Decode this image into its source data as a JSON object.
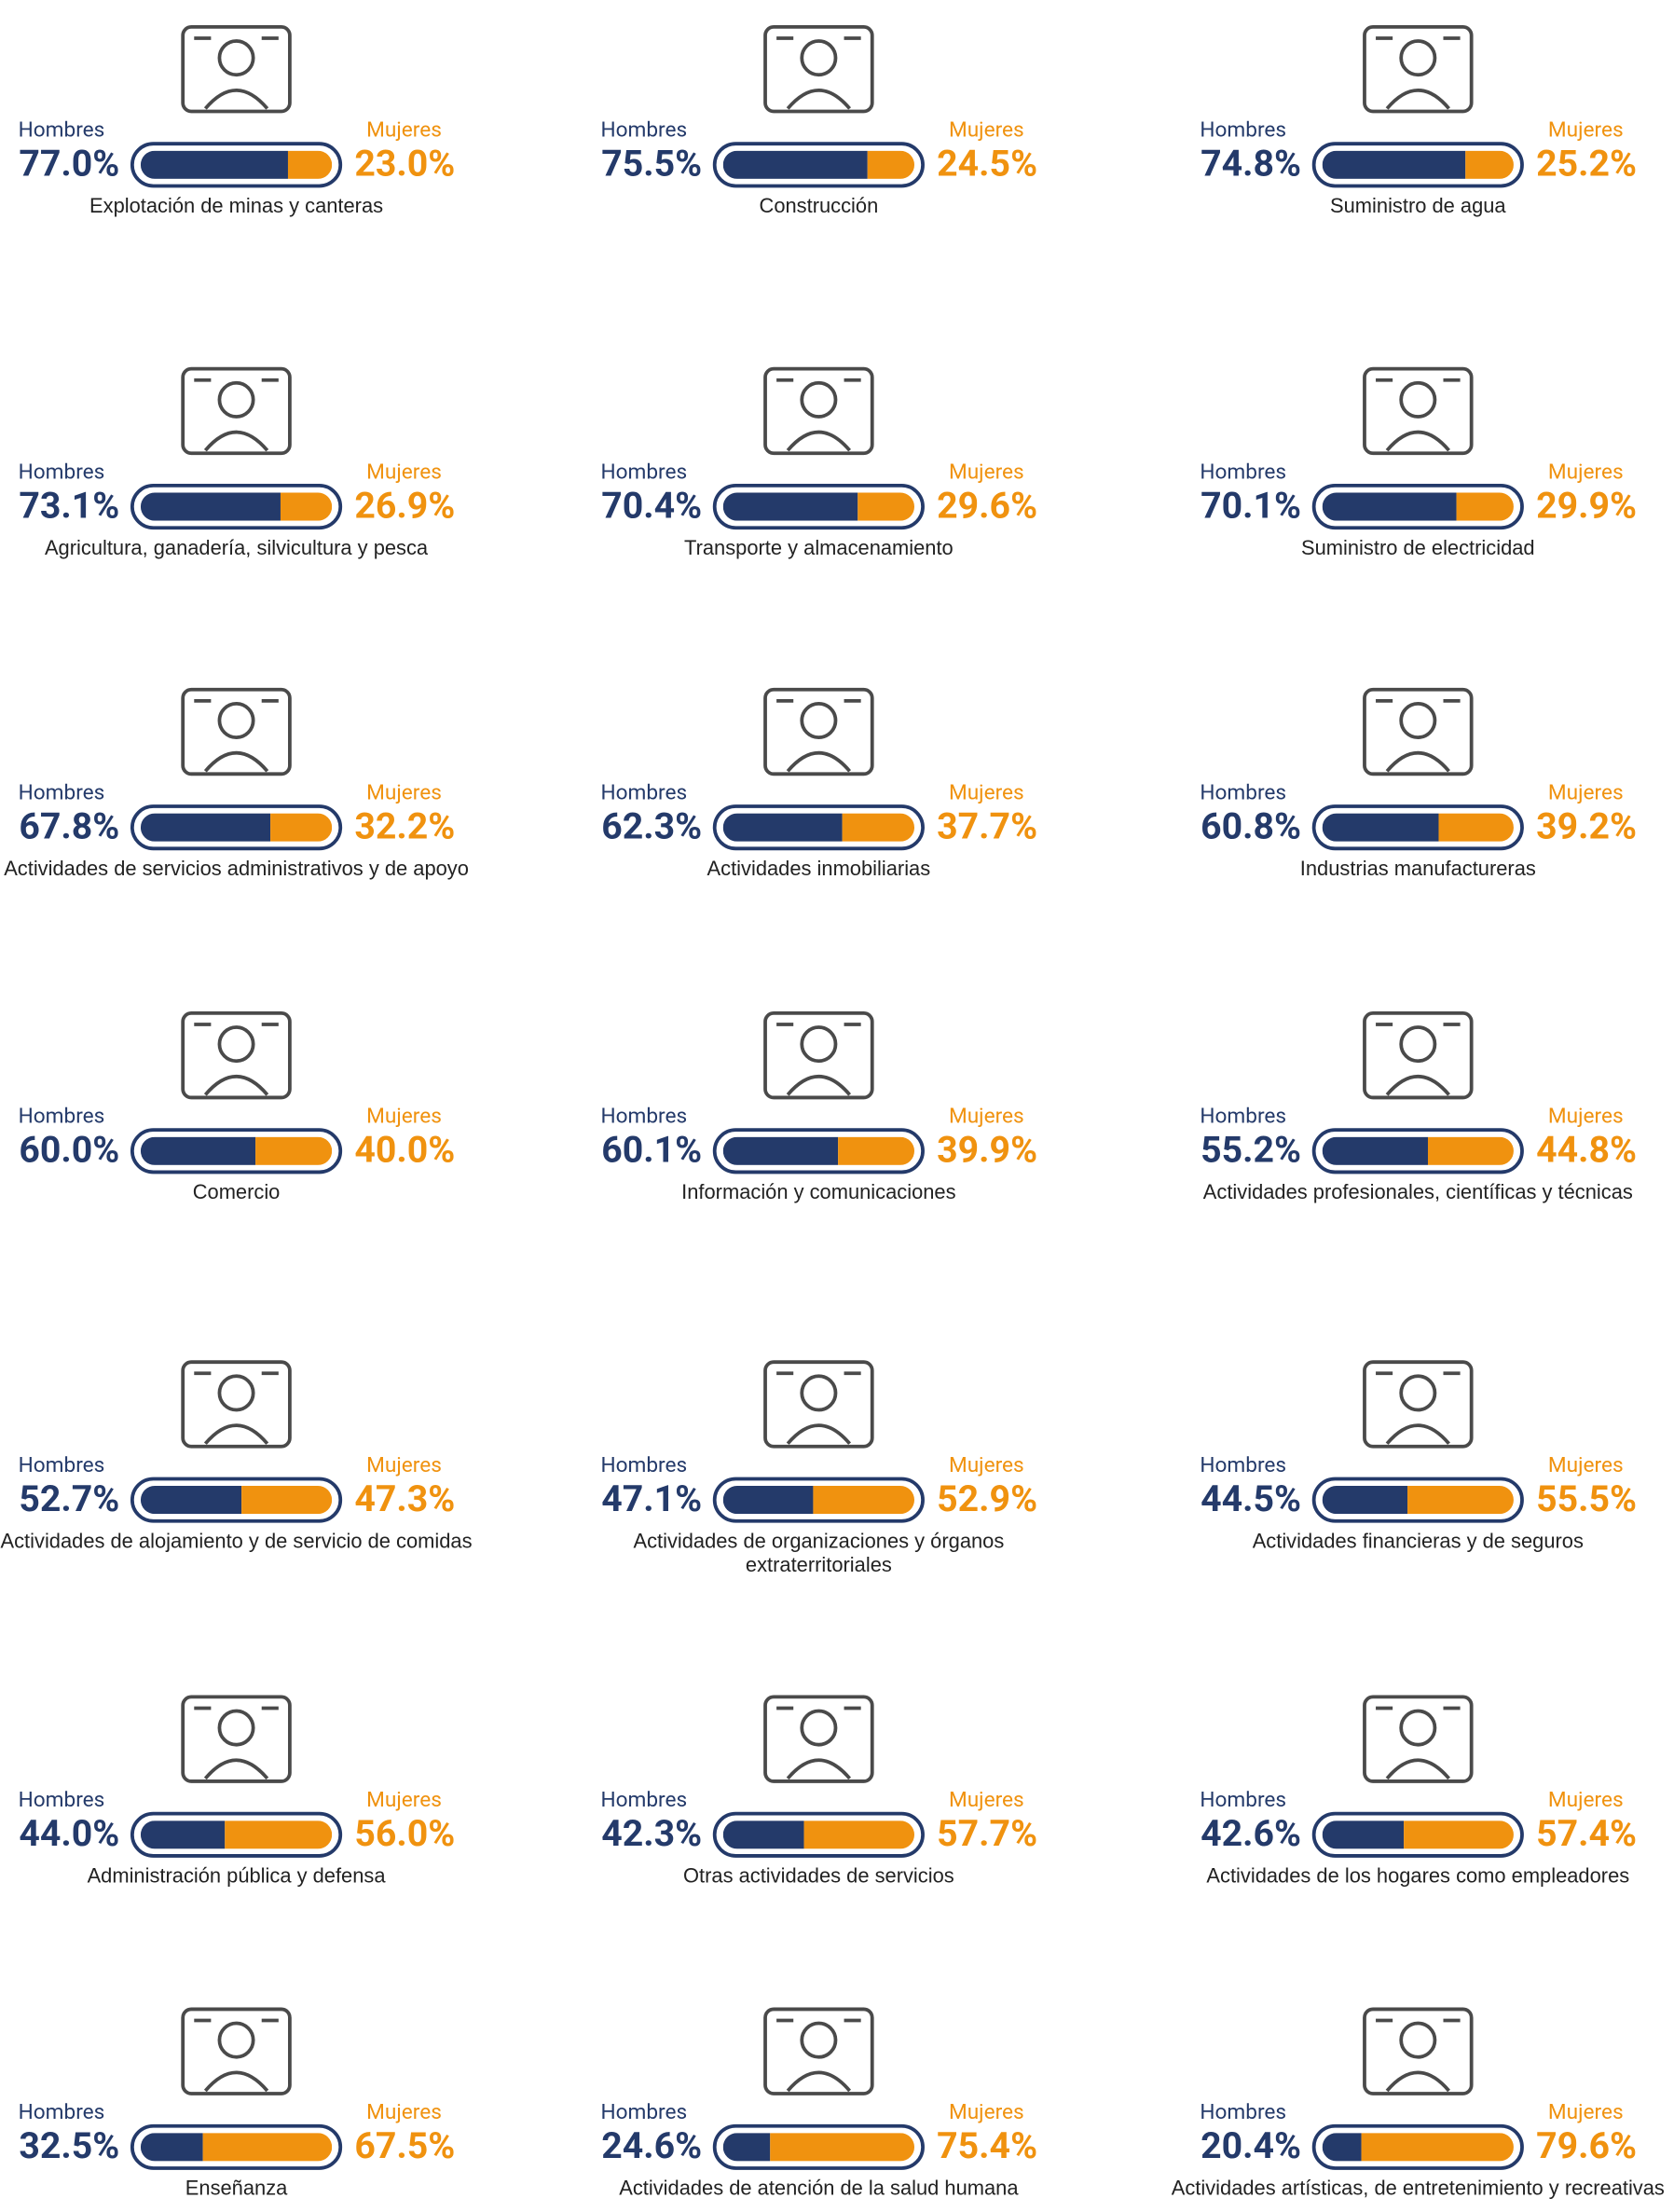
{
  "chart_data": [
    {
      "type": "stacked-hbar",
      "title": "Explotación de minas y canteras",
      "xlim": [
        0,
        100
      ],
      "series": [
        {
          "name": "Hombres",
          "color": "#243a6a",
          "values": [
            77.0
          ],
          "value_labels": [
            "77.0%"
          ]
        },
        {
          "name": "Mujeres",
          "color": "#f0920f",
          "values": [
            23.0
          ],
          "value_labels": [
            "23.0%"
          ]
        }
      ]
    },
    {
      "type": "stacked-hbar",
      "title": "Construcción",
      "xlim": [
        0,
        100
      ],
      "series": [
        {
          "name": "Hombres",
          "color": "#243a6a",
          "values": [
            75.5
          ],
          "value_labels": [
            "75.5%"
          ]
        },
        {
          "name": "Mujeres",
          "color": "#f0920f",
          "values": [
            24.5
          ],
          "value_labels": [
            "24.5%"
          ]
        }
      ]
    },
    {
      "type": "stacked-hbar",
      "title": "Suministro de agua",
      "xlim": [
        0,
        100
      ],
      "series": [
        {
          "name": "Hombres",
          "color": "#243a6a",
          "values": [
            74.8
          ],
          "value_labels": [
            "74.8%"
          ]
        },
        {
          "name": "Mujeres",
          "color": "#f0920f",
          "values": [
            25.2
          ],
          "value_labels": [
            "25.2%"
          ]
        }
      ]
    },
    {
      "type": "stacked-hbar",
      "title": "Agricultura, ganadería, silvicultura y pesca",
      "xlim": [
        0,
        100
      ],
      "series": [
        {
          "name": "Hombres",
          "color": "#243a6a",
          "values": [
            73.1
          ],
          "value_labels": [
            "73.1%"
          ]
        },
        {
          "name": "Mujeres",
          "color": "#f0920f",
          "values": [
            26.9
          ],
          "value_labels": [
            "26.9%"
          ]
        }
      ]
    },
    {
      "type": "stacked-hbar",
      "title": "Transporte y almacenamiento",
      "xlim": [
        0,
        100
      ],
      "series": [
        {
          "name": "Hombres",
          "color": "#243a6a",
          "values": [
            70.4
          ],
          "value_labels": [
            "70.4%"
          ]
        },
        {
          "name": "Mujeres",
          "color": "#f0920f",
          "values": [
            29.6
          ],
          "value_labels": [
            "29.6%"
          ]
        }
      ]
    },
    {
      "type": "stacked-hbar",
      "title": "Suministro de electricidad",
      "xlim": [
        0,
        100
      ],
      "series": [
        {
          "name": "Hombres",
          "color": "#243a6a",
          "values": [
            70.1
          ],
          "value_labels": [
            "70.1%"
          ]
        },
        {
          "name": "Mujeres",
          "color": "#f0920f",
          "values": [
            29.9
          ],
          "value_labels": [
            "29.9%"
          ]
        }
      ]
    },
    {
      "type": "stacked-hbar",
      "title": "Actividades de servicios administrativos y de apoyo",
      "xlim": [
        0,
        100
      ],
      "series": [
        {
          "name": "Hombres",
          "color": "#243a6a",
          "values": [
            67.8
          ],
          "value_labels": [
            "67.8%"
          ]
        },
        {
          "name": "Mujeres",
          "color": "#f0920f",
          "values": [
            32.2
          ],
          "value_labels": [
            "32.2%"
          ]
        }
      ]
    },
    {
      "type": "stacked-hbar",
      "title": "Actividades inmobiliarias",
      "xlim": [
        0,
        100
      ],
      "series": [
        {
          "name": "Hombres",
          "color": "#243a6a",
          "values": [
            62.3
          ],
          "value_labels": [
            "62.3%"
          ]
        },
        {
          "name": "Mujeres",
          "color": "#f0920f",
          "values": [
            37.7
          ],
          "value_labels": [
            "37.7%"
          ]
        }
      ]
    },
    {
      "type": "stacked-hbar",
      "title": "Industrias manufactureras",
      "xlim": [
        0,
        100
      ],
      "series": [
        {
          "name": "Hombres",
          "color": "#243a6a",
          "values": [
            60.8
          ],
          "value_labels": [
            "60.8%"
          ]
        },
        {
          "name": "Mujeres",
          "color": "#f0920f",
          "values": [
            39.2
          ],
          "value_labels": [
            "39.2%"
          ]
        }
      ]
    },
    {
      "type": "stacked-hbar",
      "title": "Comercio",
      "xlim": [
        0,
        100
      ],
      "series": [
        {
          "name": "Hombres",
          "color": "#243a6a",
          "values": [
            60.0
          ],
          "value_labels": [
            "60.0%"
          ]
        },
        {
          "name": "Mujeres",
          "color": "#f0920f",
          "values": [
            40.0
          ],
          "value_labels": [
            "40.0%"
          ]
        }
      ]
    },
    {
      "type": "stacked-hbar",
      "title": "Información y comunicaciones",
      "xlim": [
        0,
        100
      ],
      "series": [
        {
          "name": "Hombres",
          "color": "#243a6a",
          "values": [
            60.1
          ],
          "value_labels": [
            "60.1%"
          ]
        },
        {
          "name": "Mujeres",
          "color": "#f0920f",
          "values": [
            39.9
          ],
          "value_labels": [
            "39.9%"
          ]
        }
      ]
    },
    {
      "type": "stacked-hbar",
      "title": "Actividades profesionales, científicas y técnicas",
      "xlim": [
        0,
        100
      ],
      "series": [
        {
          "name": "Hombres",
          "color": "#243a6a",
          "values": [
            55.2
          ],
          "value_labels": [
            "55.2%"
          ]
        },
        {
          "name": "Mujeres",
          "color": "#f0920f",
          "values": [
            44.8
          ],
          "value_labels": [
            "44.8%"
          ]
        }
      ]
    },
    {
      "type": "stacked-hbar",
      "title": "Actividades de alojamiento y de servicio de comidas",
      "xlim": [
        0,
        100
      ],
      "series": [
        {
          "name": "Hombres",
          "color": "#243a6a",
          "values": [
            52.7
          ],
          "value_labels": [
            "52.7%"
          ]
        },
        {
          "name": "Mujeres",
          "color": "#f0920f",
          "values": [
            47.3
          ],
          "value_labels": [
            "47.3%"
          ]
        }
      ]
    },
    {
      "type": "stacked-hbar",
      "title": "Actividades de organizaciones y órganos extraterritoriales",
      "xlim": [
        0,
        100
      ],
      "series": [
        {
          "name": "Hombres",
          "color": "#243a6a",
          "values": [
            47.1
          ],
          "value_labels": [
            "47.1%"
          ]
        },
        {
          "name": "Mujeres",
          "color": "#f0920f",
          "values": [
            52.9
          ],
          "value_labels": [
            "52.9%"
          ]
        }
      ]
    },
    {
      "type": "stacked-hbar",
      "title": "Actividades financieras y de seguros",
      "xlim": [
        0,
        100
      ],
      "series": [
        {
          "name": "Hombres",
          "color": "#243a6a",
          "values": [
            44.5
          ],
          "value_labels": [
            "44.5%"
          ]
        },
        {
          "name": "Mujeres",
          "color": "#f0920f",
          "values": [
            55.5
          ],
          "value_labels": [
            "55.5%"
          ]
        }
      ]
    },
    {
      "type": "stacked-hbar",
      "title": "Administración pública y defensa",
      "xlim": [
        0,
        100
      ],
      "series": [
        {
          "name": "Hombres",
          "color": "#243a6a",
          "values": [
            44.0
          ],
          "value_labels": [
            "44.0%"
          ]
        },
        {
          "name": "Mujeres",
          "color": "#f0920f",
          "values": [
            56.0
          ],
          "value_labels": [
            "56.0%"
          ]
        }
      ]
    },
    {
      "type": "stacked-hbar",
      "title": "Otras actividades de servicios",
      "xlim": [
        0,
        100
      ],
      "series": [
        {
          "name": "Hombres",
          "color": "#243a6a",
          "values": [
            42.3
          ],
          "value_labels": [
            "42.3%"
          ]
        },
        {
          "name": "Mujeres",
          "color": "#f0920f",
          "values": [
            57.7
          ],
          "value_labels": [
            "57.7%"
          ]
        }
      ]
    },
    {
      "type": "stacked-hbar",
      "title": "Actividades de los hogares como empleadores",
      "xlim": [
        0,
        100
      ],
      "series": [
        {
          "name": "Hombres",
          "color": "#243a6a",
          "values": [
            42.6
          ],
          "value_labels": [
            "42.6%"
          ]
        },
        {
          "name": "Mujeres",
          "color": "#f0920f",
          "values": [
            57.4
          ],
          "value_labels": [
            "57.4%"
          ]
        }
      ]
    },
    {
      "type": "stacked-hbar",
      "title": "Enseñanza",
      "xlim": [
        0,
        100
      ],
      "series": [
        {
          "name": "Hombres",
          "color": "#243a6a",
          "values": [
            32.5
          ],
          "value_labels": [
            "32.5%"
          ]
        },
        {
          "name": "Mujeres",
          "color": "#f0920f",
          "values": [
            67.5
          ],
          "value_labels": [
            "67.5%"
          ]
        }
      ]
    },
    {
      "type": "stacked-hbar",
      "title": "Actividades de atención de la salud humana",
      "xlim": [
        0,
        100
      ],
      "series": [
        {
          "name": "Hombres",
          "color": "#243a6a",
          "values": [
            24.6
          ],
          "value_labels": [
            "24.6%"
          ]
        },
        {
          "name": "Mujeres",
          "color": "#f0920f",
          "values": [
            75.4
          ],
          "value_labels": [
            "75.4%"
          ]
        }
      ]
    },
    {
      "type": "stacked-hbar",
      "title": "Actividades artísticas, de entretenimiento y recreativas",
      "xlim": [
        0,
        100
      ],
      "series": [
        {
          "name": "Hombres",
          "color": "#243a6a",
          "values": [
            20.4
          ],
          "value_labels": [
            "20.4%"
          ]
        },
        {
          "name": "Mujeres",
          "color": "#f0920f",
          "values": [
            79.6
          ],
          "value_labels": [
            "79.6%"
          ]
        }
      ]
    }
  ]
}
